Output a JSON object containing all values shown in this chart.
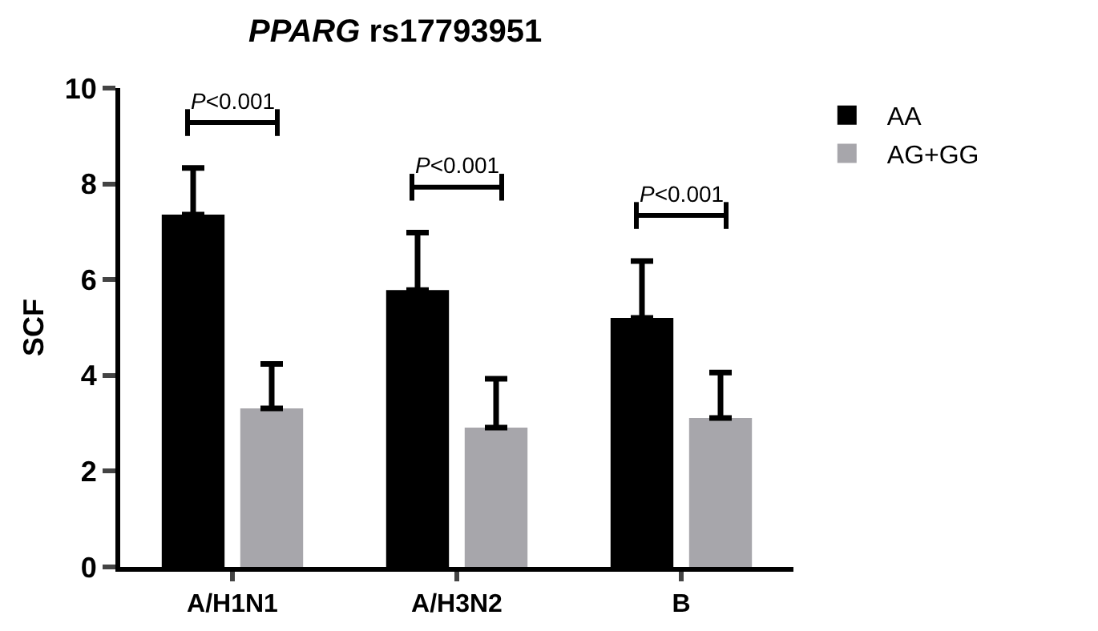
{
  "chart_data": {
    "type": "bar",
    "title": "PPARG rs17793951",
    "ylabel": "SCF",
    "categories": [
      "A/H1N1",
      "A/H3N2",
      "B"
    ],
    "series": [
      {
        "name": "AA",
        "color": "#000000",
        "values": [
          7.36,
          5.78,
          5.2
        ],
        "errors": [
          [
            7.36,
            8.33
          ],
          [
            5.78,
            6.98
          ],
          [
            5.2,
            6.39
          ]
        ]
      },
      {
        "name": "AG+GG",
        "color": "#a7a6ab",
        "values": [
          3.31,
          2.91,
          3.11
        ],
        "errors": [
          [
            3.31,
            4.24
          ],
          [
            2.91,
            3.93
          ],
          [
            3.11,
            4.06
          ]
        ]
      }
    ],
    "annotations": [
      "P<0.001",
      "P<0.001",
      "P<0.001"
    ],
    "ylim": [
      0,
      10
    ],
    "yticks": [
      0,
      2,
      4,
      6,
      8,
      10
    ],
    "grid": false,
    "legend": "top right"
  }
}
